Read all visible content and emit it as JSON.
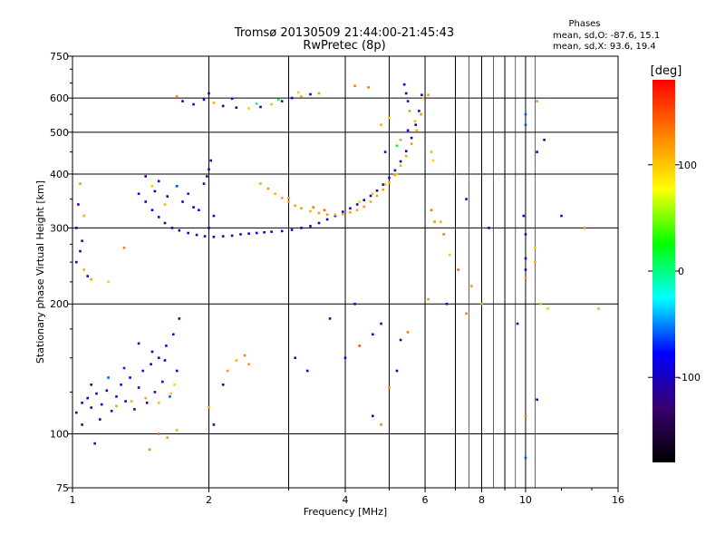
{
  "chart_data": {
    "type": "scatter",
    "title": "Tromsø 20130509 21:44:00-21:45:43",
    "subtitle": "RwPretec (8p)",
    "xlabel": "Frequency [MHz]",
    "ylabel": "Stationary phase Virtual Height [km]",
    "x_scale": "log",
    "y_scale": "log",
    "xlim": [
      1,
      16
    ],
    "ylim": [
      75,
      750
    ],
    "x_ticks": [
      1,
      2,
      4,
      6,
      8,
      10,
      16
    ],
    "x_tick_labels": [
      "1",
      "2",
      "4",
      "6",
      "8",
      "10",
      "16"
    ],
    "x_minor_lines": [
      3,
      5,
      7,
      9
    ],
    "y_ticks": [
      75,
      100,
      200,
      300,
      400,
      500,
      600,
      750
    ],
    "y_tick_labels": [
      "75",
      "100",
      "200",
      "300",
      "400",
      "500",
      "600",
      "750"
    ],
    "y_minor_lines": [
      400,
      500
    ],
    "grid": true,
    "stats": {
      "header": "Phases",
      "o_line": "mean, sd,O: -87.6, 15.1",
      "x_line": "mean, sd,X:  93.6, 19.4"
    },
    "colorbar": {
      "label": "[deg]",
      "range": [
        -180,
        180
      ],
      "ticks": [
        100,
        0,
        -100
      ],
      "tick_labels": [
        "100",
        "0",
        "-100"
      ],
      "colors": [
        "#000000",
        "#3a0070",
        "#0000ff",
        "#00ffff",
        "#00ff00",
        "#ffff00",
        "#ff8000",
        "#ff0000"
      ]
    },
    "points": [
      [
        1.02,
        112,
        -100
      ],
      [
        1.05,
        118,
        -95
      ],
      [
        1.08,
        121,
        -90
      ],
      [
        1.1,
        115,
        -105
      ],
      [
        1.13,
        124,
        -85
      ],
      [
        1.16,
        117,
        -100
      ],
      [
        1.19,
        126,
        -92
      ],
      [
        1.22,
        113,
        -110
      ],
      [
        1.25,
        122,
        -98
      ],
      [
        1.28,
        130,
        -80
      ],
      [
        1.31,
        119,
        -102
      ],
      [
        1.34,
        135,
        -88
      ],
      [
        1.37,
        114,
        -95
      ],
      [
        1.4,
        128,
        -100
      ],
      [
        1.43,
        140,
        -75
      ],
      [
        1.46,
        118,
        -105
      ],
      [
        1.49,
        145,
        -90
      ],
      [
        1.52,
        125,
        -98
      ],
      [
        1.55,
        150,
        -82
      ],
      [
        1.58,
        132,
        -100
      ],
      [
        1.61,
        160,
        -95
      ],
      [
        1.64,
        122,
        -60
      ],
      [
        1.67,
        170,
        -100
      ],
      [
        1.7,
        140,
        -90
      ],
      [
        1.72,
        185,
        -105
      ],
      [
        1.15,
        108,
        -100
      ],
      [
        1.25,
        116,
        120
      ],
      [
        1.35,
        119,
        110
      ],
      [
        1.45,
        121,
        115
      ],
      [
        1.55,
        118,
        105
      ],
      [
        1.65,
        124,
        100
      ],
      [
        1.2,
        135,
        -60
      ],
      [
        1.3,
        142,
        -70
      ],
      [
        1.5,
        155,
        -85
      ],
      [
        1.6,
        148,
        -95
      ],
      [
        1.1,
        130,
        -100
      ],
      [
        1.4,
        162,
        -88
      ],
      [
        1.68,
        130,
        95
      ],
      [
        1.05,
        105,
        -100
      ],
      [
        1.12,
        95,
        -90
      ],
      [
        1.55,
        100,
        140
      ],
      [
        1.62,
        98,
        120
      ],
      [
        1.7,
        102,
        110
      ],
      [
        1.48,
        92,
        130
      ],
      [
        1.45,
        345,
        -100
      ],
      [
        1.5,
        330,
        -95
      ],
      [
        1.55,
        318,
        -100
      ],
      [
        1.6,
        308,
        -105
      ],
      [
        1.66,
        300,
        -98
      ],
      [
        1.72,
        296,
        -100
      ],
      [
        1.8,
        292,
        -102
      ],
      [
        1.88,
        289,
        -100
      ],
      [
        1.96,
        287,
        -98
      ],
      [
        2.05,
        286,
        -100
      ],
      [
        2.15,
        287,
        -95
      ],
      [
        2.25,
        288,
        -100
      ],
      [
        2.35,
        290,
        -98
      ],
      [
        2.45,
        291,
        -100
      ],
      [
        2.55,
        292,
        -90
      ],
      [
        2.65,
        293,
        -100
      ],
      [
        2.75,
        294,
        -95
      ],
      [
        2.9,
        295,
        -100
      ],
      [
        3.05,
        297,
        -98
      ],
      [
        3.2,
        300,
        -100
      ],
      [
        3.35,
        303,
        -95
      ],
      [
        3.5,
        308,
        -100
      ],
      [
        3.65,
        314,
        -90
      ],
      [
        3.8,
        320,
        -95
      ],
      [
        3.95,
        327,
        -100
      ],
      [
        4.1,
        333,
        -98
      ],
      [
        4.25,
        340,
        -95
      ],
      [
        4.4,
        348,
        -100
      ],
      [
        4.55,
        356,
        -98
      ],
      [
        4.7,
        366,
        -100
      ],
      [
        4.85,
        378,
        -95
      ],
      [
        5.0,
        392,
        -100
      ],
      [
        5.15,
        408,
        -98
      ],
      [
        5.3,
        428,
        -95
      ],
      [
        5.45,
        452,
        -100
      ],
      [
        5.6,
        485,
        -98
      ],
      [
        5.72,
        520,
        -100
      ],
      [
        5.82,
        560,
        -95
      ],
      [
        5.9,
        610,
        -100
      ],
      [
        1.4,
        360,
        -80
      ],
      [
        1.52,
        365,
        -85
      ],
      [
        1.62,
        355,
        -100
      ],
      [
        1.75,
        345,
        -90
      ],
      [
        1.85,
        335,
        -98
      ],
      [
        1.95,
        380,
        -100
      ],
      [
        2.0,
        410,
        -105
      ],
      [
        2.02,
        430,
        -110
      ],
      [
        1.98,
        395,
        -100
      ],
      [
        2.0,
        300,
        -100
      ],
      [
        2.05,
        320,
        -95
      ],
      [
        1.9,
        330,
        -80
      ],
      [
        1.8,
        360,
        -70
      ],
      [
        1.7,
        375,
        -65
      ],
      [
        1.6,
        340,
        110
      ],
      [
        1.55,
        385,
        -100
      ],
      [
        1.45,
        395,
        -95
      ],
      [
        1.5,
        375,
        100
      ],
      [
        2.6,
        380,
        115
      ],
      [
        2.7,
        370,
        120
      ],
      [
        2.8,
        360,
        110
      ],
      [
        2.9,
        352,
        115
      ],
      [
        3.0,
        345,
        118
      ],
      [
        3.1,
        338,
        112
      ],
      [
        3.2,
        333,
        120
      ],
      [
        3.35,
        328,
        110
      ],
      [
        3.5,
        325,
        115
      ],
      [
        3.65,
        322,
        120
      ],
      [
        3.8,
        322,
        110
      ],
      [
        3.95,
        323,
        115
      ],
      [
        4.1,
        326,
        118
      ],
      [
        4.25,
        330,
        112
      ],
      [
        4.4,
        336,
        120
      ],
      [
        4.55,
        345,
        110
      ],
      [
        4.7,
        356,
        115
      ],
      [
        4.85,
        368,
        118
      ],
      [
        5.0,
        382,
        112
      ],
      [
        5.15,
        398,
        120
      ],
      [
        5.3,
        418,
        110
      ],
      [
        5.45,
        440,
        115
      ],
      [
        5.6,
        470,
        118
      ],
      [
        5.75,
        505,
        112
      ],
      [
        5.88,
        550,
        120
      ],
      [
        5.95,
        600,
        105
      ],
      [
        4.3,
        345,
        95
      ],
      [
        4.6,
        360,
        100
      ],
      [
        4.9,
        378,
        105
      ],
      [
        5.2,
        400,
        98
      ],
      [
        3.4,
        335,
        135
      ],
      [
        3.6,
        330,
        140
      ],
      [
        3.0,
        352,
        125
      ],
      [
        1.75,
        590,
        -100
      ],
      [
        1.85,
        580,
        -90
      ],
      [
        1.95,
        595,
        -100
      ],
      [
        2.05,
        585,
        110
      ],
      [
        2.15,
        575,
        -95
      ],
      [
        2.3,
        570,
        -100
      ],
      [
        2.45,
        568,
        100
      ],
      [
        2.6,
        572,
        -98
      ],
      [
        2.75,
        580,
        105
      ],
      [
        2.9,
        590,
        -100
      ],
      [
        3.05,
        600,
        -95
      ],
      [
        3.2,
        605,
        115
      ],
      [
        3.35,
        612,
        -100
      ],
      [
        3.5,
        615,
        120
      ],
      [
        1.7,
        605,
        125
      ],
      [
        2.0,
        615,
        -100
      ],
      [
        2.25,
        598,
        -80
      ],
      [
        2.55,
        582,
        0
      ],
      [
        2.85,
        595,
        10
      ],
      [
        3.15,
        618,
        100
      ],
      [
        4.2,
        640,
        130
      ],
      [
        4.5,
        635,
        135
      ],
      [
        5.4,
        645,
        -100
      ],
      [
        5.45,
        615,
        -95
      ],
      [
        5.5,
        590,
        -100
      ],
      [
        5.55,
        560,
        120
      ],
      [
        5.7,
        530,
        110
      ],
      [
        5.5,
        505,
        -80
      ],
      [
        5.3,
        480,
        115
      ],
      [
        5.2,
        465,
        20
      ],
      [
        4.9,
        450,
        -100
      ],
      [
        4.8,
        520,
        110
      ],
      [
        5.0,
        540,
        100
      ],
      [
        6.1,
        610,
        120
      ],
      [
        6.2,
        330,
        130
      ],
      [
        6.3,
        310,
        120
      ],
      [
        6.25,
        430,
        100
      ],
      [
        6.2,
        450,
        110
      ],
      [
        2.2,
        140,
        120
      ],
      [
        2.3,
        148,
        110
      ],
      [
        2.4,
        152,
        130
      ],
      [
        2.45,
        145,
        120
      ],
      [
        2.15,
        130,
        -90
      ],
      [
        2.0,
        115,
        110
      ],
      [
        2.05,
        105,
        -100
      ],
      [
        3.1,
        150,
        -100
      ],
      [
        3.3,
        140,
        -100
      ],
      [
        3.7,
        185,
        -100
      ],
      [
        4.0,
        150,
        -80
      ],
      [
        4.3,
        160,
        150
      ],
      [
        4.6,
        170,
        -100
      ],
      [
        4.8,
        180,
        -100
      ],
      [
        5.3,
        165,
        -100
      ],
      [
        5.5,
        172,
        130
      ],
      [
        5.2,
        140,
        -100
      ],
      [
        5.0,
        128,
        120
      ],
      [
        1.02,
        250,
        -100
      ],
      [
        1.04,
        265,
        -95
      ],
      [
        1.06,
        240,
        110
      ],
      [
        1.08,
        232,
        -100
      ],
      [
        1.1,
        228,
        120
      ],
      [
        1.05,
        280,
        -100
      ],
      [
        1.02,
        300,
        -90
      ],
      [
        1.06,
        320,
        110
      ],
      [
        1.03,
        340,
        -100
      ],
      [
        1.2,
        225,
        100
      ],
      [
        1.04,
        380,
        120
      ],
      [
        1.3,
        270,
        130
      ],
      [
        6.5,
        310,
        110
      ],
      [
        6.6,
        290,
        130
      ],
      [
        6.8,
        260,
        100
      ],
      [
        7.1,
        240,
        140
      ],
      [
        7.4,
        350,
        -100
      ],
      [
        7.6,
        220,
        120
      ],
      [
        8.0,
        200,
        110
      ],
      [
        8.3,
        300,
        -100
      ],
      [
        9.9,
        320,
        -100
      ],
      [
        10.0,
        290,
        -100
      ],
      [
        10.0,
        255,
        -100
      ],
      [
        10.0,
        240,
        -100
      ],
      [
        10.0,
        230,
        120
      ],
      [
        10.5,
        250,
        110
      ],
      [
        10.5,
        270,
        100
      ],
      [
        10.6,
        590,
        120
      ],
      [
        10.6,
        450,
        -100
      ],
      [
        11.0,
        480,
        -100
      ],
      [
        10.0,
        550,
        -60
      ],
      [
        10.0,
        520,
        -60
      ],
      [
        10.0,
        110,
        130
      ],
      [
        10.6,
        120,
        -100
      ],
      [
        10.0,
        88,
        -60
      ],
      [
        10.8,
        200,
        110
      ],
      [
        11.2,
        195,
        100
      ],
      [
        12.0,
        320,
        -100
      ],
      [
        13.5,
        300,
        120
      ],
      [
        14.5,
        195,
        110
      ],
      [
        9.6,
        180,
        -100
      ],
      [
        7.4,
        190,
        130
      ],
      [
        6.7,
        200,
        -100
      ],
      [
        6.1,
        205,
        120
      ],
      [
        4.6,
        110,
        -100
      ],
      [
        4.8,
        105,
        130
      ],
      [
        4.2,
        200,
        -100
      ]
    ]
  }
}
